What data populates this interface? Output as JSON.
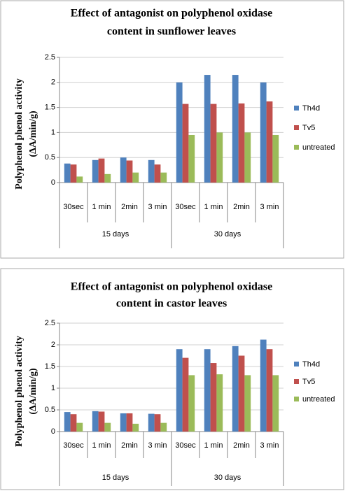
{
  "chart_data": [
    {
      "type": "bar",
      "title": [
        "Effect of antagonist on polyphenol oxidase",
        "content in sunflower leaves"
      ],
      "ylabel": [
        "Polyphenol phenol activity",
        "(ΔA/min/g)"
      ],
      "categories": [
        "30sec",
        "1 min",
        "2min",
        "3 min",
        "30sec",
        "1 min",
        "2min",
        "3 min"
      ],
      "groups": [
        "15 days",
        "30 days"
      ],
      "ylim": [
        0,
        2.5
      ],
      "yticks": [
        0,
        0.5,
        1,
        1.5,
        2,
        2.5
      ],
      "grid": true,
      "legend": "right",
      "series": [
        {
          "name": "Th4d",
          "color": "#4f81bd",
          "values": [
            0.38,
            0.45,
            0.5,
            0.45,
            2.0,
            2.15,
            2.15,
            2.0
          ]
        },
        {
          "name": "Tv5",
          "color": "#c0504d",
          "values": [
            0.36,
            0.48,
            0.44,
            0.36,
            1.57,
            1.57,
            1.58,
            1.62
          ]
        },
        {
          "name": "untreated",
          "color": "#9bbb59",
          "values": [
            0.12,
            0.17,
            0.2,
            0.2,
            0.95,
            1.0,
            1.0,
            0.95
          ]
        }
      ]
    },
    {
      "type": "bar",
      "title": [
        "Effect of antagonist on polyphenol oxidase",
        "content in castor leaves"
      ],
      "ylabel": [
        "Polyphenol phenol activity",
        "(ΔA/min/g)"
      ],
      "categories": [
        "30sec",
        "1 min",
        "2min",
        "3 min",
        "30sec",
        "1 min",
        "2min",
        "3 min"
      ],
      "groups": [
        "15 days",
        "30 days"
      ],
      "ylim": [
        0,
        2.5
      ],
      "yticks": [
        0,
        0.5,
        1,
        1.5,
        2,
        2.5
      ],
      "grid": true,
      "legend": "right",
      "series": [
        {
          "name": "Th4d",
          "color": "#4f81bd",
          "values": [
            0.45,
            0.47,
            0.42,
            0.41,
            1.9,
            1.9,
            1.97,
            2.12
          ]
        },
        {
          "name": "Tv5",
          "color": "#c0504d",
          "values": [
            0.4,
            0.46,
            0.42,
            0.4,
            1.7,
            1.58,
            1.75,
            1.9
          ]
        },
        {
          "name": "untreated",
          "color": "#9bbb59",
          "values": [
            0.2,
            0.2,
            0.18,
            0.2,
            1.3,
            1.32,
            1.3,
            1.3
          ]
        }
      ]
    }
  ]
}
